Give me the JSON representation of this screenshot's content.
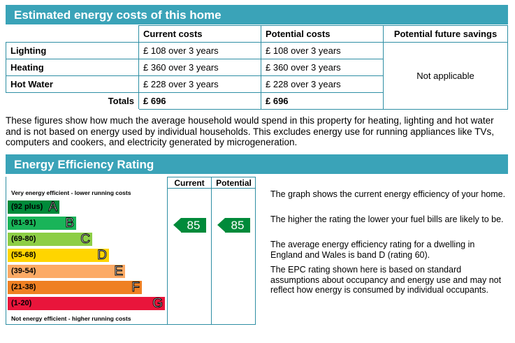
{
  "costs_section": {
    "title": "Estimated energy costs of this home",
    "headers": [
      "Current costs",
      "Potential costs",
      "Potential future savings"
    ],
    "rows": [
      {
        "label": "Lighting",
        "current": "£ 108 over 3 years",
        "potential": "£ 108 over 3 years"
      },
      {
        "label": "Heating",
        "current": "£ 360 over 3 years",
        "potential": "£ 360 over 3 years"
      },
      {
        "label": "Hot Water",
        "current": "£ 228 over 3 years",
        "potential": "£ 228 over 3 years"
      }
    ],
    "savings": "Not applicable",
    "totals_label": "Totals",
    "totals_current": "£ 696",
    "totals_potential": "£ 696",
    "note": "These figures show how much the average household would spend in this property for heating, lighting and hot water and is not based on energy used by individual households. This excludes energy use for running appliances like TVs, computers and cookers, and electricity generated by microgeneration."
  },
  "rating_section": {
    "title": "Energy Efficiency Rating",
    "col_current": "Current",
    "col_potential": "Potential",
    "top_label": "Very energy efficient - lower running costs",
    "bottom_label": "Not energy efficient - higher running costs",
    "bands": [
      {
        "range": "(92 plus)",
        "letter": "A",
        "color": "#008a3a"
      },
      {
        "range": "(81-91)",
        "letter": "B",
        "color": "#19b459"
      },
      {
        "range": "(69-80)",
        "letter": "C",
        "color": "#8dce46"
      },
      {
        "range": "(55-68)",
        "letter": "D",
        "color": "#ffd500"
      },
      {
        "range": "(39-54)",
        "letter": "E",
        "color": "#fcaa65"
      },
      {
        "range": "(21-38)",
        "letter": "F",
        "color": "#ef8023"
      },
      {
        "range": "(1-20)",
        "letter": "G",
        "color": "#e9153b"
      }
    ],
    "current_rating": "85",
    "potential_rating": "85",
    "explanations": [
      "The graph shows the current energy efficiency of your home.",
      "The higher the rating the lower your fuel bills are likely to be.",
      "The average energy efficiency rating for a dwelling in England and Wales is band D (rating 60).",
      "The EPC rating shown here is based on standard assumptions about occupancy and energy use and may not reflect how energy is consumed by individual occupants."
    ]
  }
}
